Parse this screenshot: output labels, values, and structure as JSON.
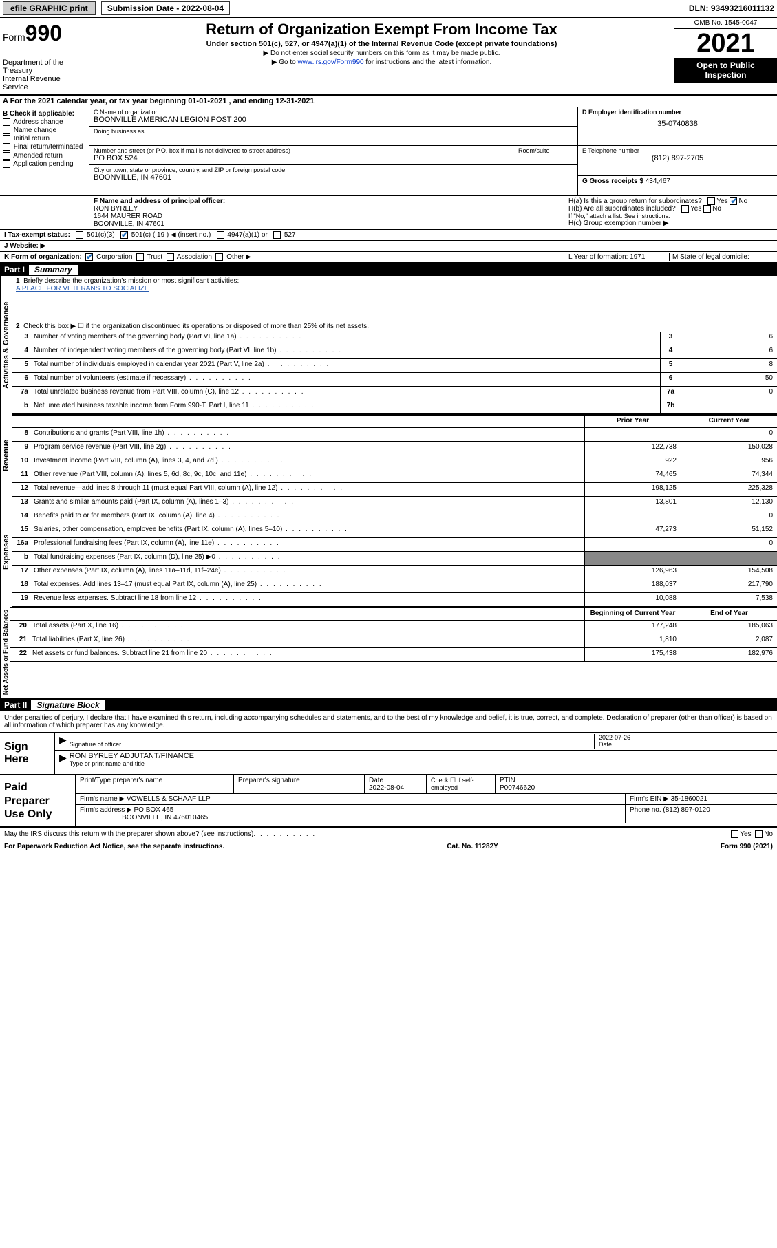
{
  "topbar": {
    "efile_label": "efile GRAPHIC print",
    "subdate_label": "Submission Date - 2022-08-04",
    "dln_label": "DLN: 93493216011132"
  },
  "header": {
    "form_prefix": "Form",
    "form_number": "990",
    "dept1": "Department of the Treasury",
    "dept2": "Internal Revenue Service",
    "title": "Return of Organization Exempt From Income Tax",
    "subtitle": "Under section 501(c), 527, or 4947(a)(1) of the Internal Revenue Code (except private foundations)",
    "note1": "▶ Do not enter social security numbers on this form as it may be made public.",
    "note2_pre": "▶ Go to ",
    "note2_link": "www.irs.gov/Form990",
    "note2_post": " for instructions and the latest information.",
    "omb": "OMB No. 1545-0047",
    "year": "2021",
    "open": "Open to Public Inspection"
  },
  "row_a": "A For the 2021 calendar year, or tax year beginning 01-01-2021  , and ending 12-31-2021",
  "col_b": {
    "label": "B Check if applicable:",
    "items": [
      "Address change",
      "Name change",
      "Initial return",
      "Final return/terminated",
      "Amended return",
      "Application pending"
    ]
  },
  "col_c": {
    "name_lbl": "C Name of organization",
    "name": "BOONVILLE AMERICAN LEGION POST 200",
    "dba_lbl": "Doing business as",
    "addr_lbl": "Number and street (or P.O. box if mail is not delivered to street address)",
    "room_lbl": "Room/suite",
    "addr": "PO BOX 524",
    "city_lbl": "City or town, state or province, country, and ZIP or foreign postal code",
    "city": "BOONVILLE, IN  47601"
  },
  "col_d": {
    "ein_lbl": "D Employer identification number",
    "ein": "35-0740838",
    "tel_lbl": "E Telephone number",
    "tel": "(812) 897-2705",
    "gross_lbl": "G Gross receipts $ ",
    "gross": "434,467"
  },
  "row_f": {
    "lbl": "F Name and address of principal officer:",
    "name": "RON BYRLEY",
    "addr1": "1644 MAURER ROAD",
    "addr2": "BOONVILLE, IN  47601"
  },
  "row_h": {
    "ha": "H(a)  Is this a group return for subordinates?",
    "hb": "H(b)  Are all subordinates included?",
    "hb_note": "If \"No,\" attach a list. See instructions.",
    "hc": "H(c)  Group exemption number ▶",
    "yes": "Yes",
    "no": "No"
  },
  "row_i": {
    "lbl": "I    Tax-exempt status:",
    "opt1": "501(c)(3)",
    "opt2": "501(c) ( 19 ) ◀ (insert no.)",
    "opt3": "4947(a)(1) or",
    "opt4": "527"
  },
  "row_j": "J    Website: ▶",
  "row_k": {
    "lbl": "K Form of organization:",
    "corp": "Corporation",
    "trust": "Trust",
    "assoc": "Association",
    "other": "Other ▶"
  },
  "row_lm": {
    "l": "L Year of formation: 1971",
    "m": "M State of legal domicile:"
  },
  "part1": {
    "label": "Part I",
    "title": "Summary",
    "vbar1": "Activities & Governance",
    "vbar2": "Revenue",
    "vbar3": "Expenses",
    "vbar4": "Net Assets or Fund Balances",
    "q1": "Briefly describe the organization's mission or most significant activities:",
    "q1_ans": "A PLACE FOR VETERANS TO SOCIALIZE",
    "q2": "Check this box ▶ ☐  if the organization discontinued its operations or disposed of more than 25% of its net assets.",
    "rows_gov": [
      {
        "n": "3",
        "d": "Number of voting members of the governing body (Part VI, line 1a)",
        "box": "3",
        "v": "6"
      },
      {
        "n": "4",
        "d": "Number of independent voting members of the governing body (Part VI, line 1b)",
        "box": "4",
        "v": "6"
      },
      {
        "n": "5",
        "d": "Total number of individuals employed in calendar year 2021 (Part V, line 2a)",
        "box": "5",
        "v": "8"
      },
      {
        "n": "6",
        "d": "Total number of volunteers (estimate if necessary)",
        "box": "6",
        "v": "50"
      },
      {
        "n": "7a",
        "d": "Total unrelated business revenue from Part VIII, column (C), line 12",
        "box": "7a",
        "v": "0"
      },
      {
        "n": "b",
        "d": "Net unrelated business taxable income from Form 990-T, Part I, line 11",
        "box": "7b",
        "v": ""
      }
    ],
    "col_py": "Prior Year",
    "col_cy": "Current Year",
    "rows_rev": [
      {
        "n": "8",
        "d": "Contributions and grants (Part VIII, line 1h)",
        "py": "",
        "cy": "0"
      },
      {
        "n": "9",
        "d": "Program service revenue (Part VIII, line 2g)",
        "py": "122,738",
        "cy": "150,028"
      },
      {
        "n": "10",
        "d": "Investment income (Part VIII, column (A), lines 3, 4, and 7d )",
        "py": "922",
        "cy": "956"
      },
      {
        "n": "11",
        "d": "Other revenue (Part VIII, column (A), lines 5, 6d, 8c, 9c, 10c, and 11e)",
        "py": "74,465",
        "cy": "74,344"
      },
      {
        "n": "12",
        "d": "Total revenue—add lines 8 through 11 (must equal Part VIII, column (A), line 12)",
        "py": "198,125",
        "cy": "225,328"
      }
    ],
    "rows_exp": [
      {
        "n": "13",
        "d": "Grants and similar amounts paid (Part IX, column (A), lines 1–3)",
        "py": "13,801",
        "cy": "12,130"
      },
      {
        "n": "14",
        "d": "Benefits paid to or for members (Part IX, column (A), line 4)",
        "py": "",
        "cy": "0"
      },
      {
        "n": "15",
        "d": "Salaries, other compensation, employee benefits (Part IX, column (A), lines 5–10)",
        "py": "47,273",
        "cy": "51,152"
      },
      {
        "n": "16a",
        "d": "Professional fundraising fees (Part IX, column (A), line 11e)",
        "py": "",
        "cy": "0"
      },
      {
        "n": "b",
        "d": "Total fundraising expenses (Part IX, column (D), line 25) ▶0",
        "py": "—",
        "cy": "—"
      },
      {
        "n": "17",
        "d": "Other expenses (Part IX, column (A), lines 11a–11d, 11f–24e)",
        "py": "126,963",
        "cy": "154,508"
      },
      {
        "n": "18",
        "d": "Total expenses. Add lines 13–17 (must equal Part IX, column (A), line 25)",
        "py": "188,037",
        "cy": "217,790"
      },
      {
        "n": "19",
        "d": "Revenue less expenses. Subtract line 18 from line 12",
        "py": "10,088",
        "cy": "7,538"
      }
    ],
    "col_bcy": "Beginning of Current Year",
    "col_eoy": "End of Year",
    "rows_net": [
      {
        "n": "20",
        "d": "Total assets (Part X, line 16)",
        "py": "177,248",
        "cy": "185,063"
      },
      {
        "n": "21",
        "d": "Total liabilities (Part X, line 26)",
        "py": "1,810",
        "cy": "2,087"
      },
      {
        "n": "22",
        "d": "Net assets or fund balances. Subtract line 21 from line 20",
        "py": "175,438",
        "cy": "182,976"
      }
    ]
  },
  "part2": {
    "label": "Part II",
    "title": "Signature Block",
    "decl": "Under penalties of perjury, I declare that I have examined this return, including accompanying schedules and statements, and to the best of my knowledge and belief, it is true, correct, and complete. Declaration of preparer (other than officer) is based on all information of which preparer has any knowledge.",
    "sign_here": "Sign Here",
    "sig_officer": "Signature of officer",
    "sig_date": "2022-07-26",
    "date_lbl": "Date",
    "sig_name": "RON BYRLEY ADJUTANT/FINANCE",
    "sig_name_lbl": "Type or print name and title",
    "paid_prep": "Paid Preparer Use Only",
    "pp_name_lbl": "Print/Type preparer's name",
    "pp_sig_lbl": "Preparer's signature",
    "pp_date_lbl": "Date",
    "pp_date": "2022-08-04",
    "pp_check_lbl": "Check ☐ if self-employed",
    "pp_ptin_lbl": "PTIN",
    "pp_ptin": "P00746620",
    "firm_name_lbl": "Firm's name    ▶",
    "firm_name": "VOWELLS & SCHAAF LLP",
    "firm_ein_lbl": "Firm's EIN ▶",
    "firm_ein": "35-1860021",
    "firm_addr_lbl": "Firm's address ▶",
    "firm_addr1": "PO BOX 465",
    "firm_addr2": "BOONVILLE, IN  476010465",
    "firm_phone_lbl": "Phone no.",
    "firm_phone": "(812) 897-0120",
    "discuss": "May the IRS discuss this return with the preparer shown above? (see instructions)",
    "yes": "Yes",
    "no": "No"
  },
  "footer": {
    "pra": "For Paperwork Reduction Act Notice, see the separate instructions.",
    "cat": "Cat. No. 11282Y",
    "form": "Form 990 (2021)"
  }
}
